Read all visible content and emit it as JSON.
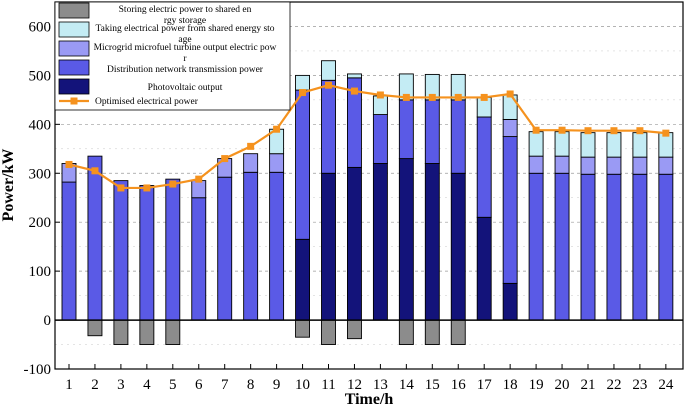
{
  "chart_data": {
    "type": "bar",
    "subtype": "stacked-bar-with-line",
    "xlabel": "Time/h",
    "ylabel": "Power/kW",
    "ylim": [
      -100,
      650
    ],
    "yticks": [
      -100,
      0,
      100,
      200,
      300,
      400,
      500,
      600
    ],
    "categories": [
      "1",
      "2",
      "3",
      "4",
      "5",
      "6",
      "7",
      "8",
      "9",
      "10",
      "11",
      "12",
      "13",
      "14",
      "15",
      "16",
      "17",
      "18",
      "19",
      "20",
      "21",
      "22",
      "23",
      "24"
    ],
    "series": [
      {
        "name": "Storing electric power to shared energy storage",
        "kind": "bar",
        "color": "#8c8c8c",
        "values": [
          0,
          -32,
          -50,
          -50,
          -50,
          0,
          0,
          0,
          0,
          -35,
          -50,
          -38,
          0,
          -50,
          -50,
          -50,
          0,
          0,
          0,
          0,
          0,
          0,
          0,
          0
        ]
      },
      {
        "name": "Photovoltaic output",
        "kind": "bar",
        "color": "#13137a",
        "values": [
          0,
          0,
          0,
          0,
          0,
          0,
          0,
          0,
          0,
          165,
          300,
          312,
          320,
          330,
          320,
          300,
          210,
          75,
          0,
          0,
          0,
          0,
          0,
          0
        ]
      },
      {
        "name": "Distribution network transmission power",
        "kind": "bar",
        "color": "#5a5ae6",
        "values": [
          282,
          335,
          285,
          275,
          288,
          250,
          292,
          302,
          302,
          305,
          190,
          183,
          100,
          120,
          130,
          150,
          205,
          300,
          300,
          300,
          298,
          298,
          298,
          298
        ]
      },
      {
        "name": "Microgrid microfuel turbine output electric power",
        "kind": "bar",
        "color": "#9a9af4",
        "values": [
          38,
          0,
          0,
          0,
          0,
          35,
          38,
          38,
          38,
          0,
          0,
          0,
          0,
          0,
          0,
          0,
          0,
          35,
          35,
          35,
          35,
          35,
          35,
          35
        ]
      },
      {
        "name": "Taking electrical power from shared energy storage",
        "kind": "bar",
        "color": "#c4ecf4",
        "values": [
          0,
          0,
          0,
          0,
          0,
          0,
          0,
          0,
          50,
          30,
          40,
          8,
          38,
          53,
          52,
          52,
          40,
          50,
          50,
          50,
          50,
          50,
          50,
          50
        ]
      },
      {
        "name": "Optimised electrical power",
        "kind": "line",
        "color": "#f5921e",
        "values": [
          318,
          305,
          270,
          270,
          278,
          288,
          330,
          355,
          390,
          465,
          480,
          468,
          460,
          455,
          455,
          455,
          455,
          462,
          388,
          388,
          387,
          387,
          387,
          382
        ]
      }
    ],
    "legend": {
      "placement": "top-left",
      "entries": [
        "Storing electric power to shared energy storage",
        "Taking electrical power from shared energy storage",
        "Microgrid microfuel turbine output electric power",
        "Distribution network transmission power",
        "Photovoltaic output",
        "Optimised electrical power"
      ]
    }
  }
}
